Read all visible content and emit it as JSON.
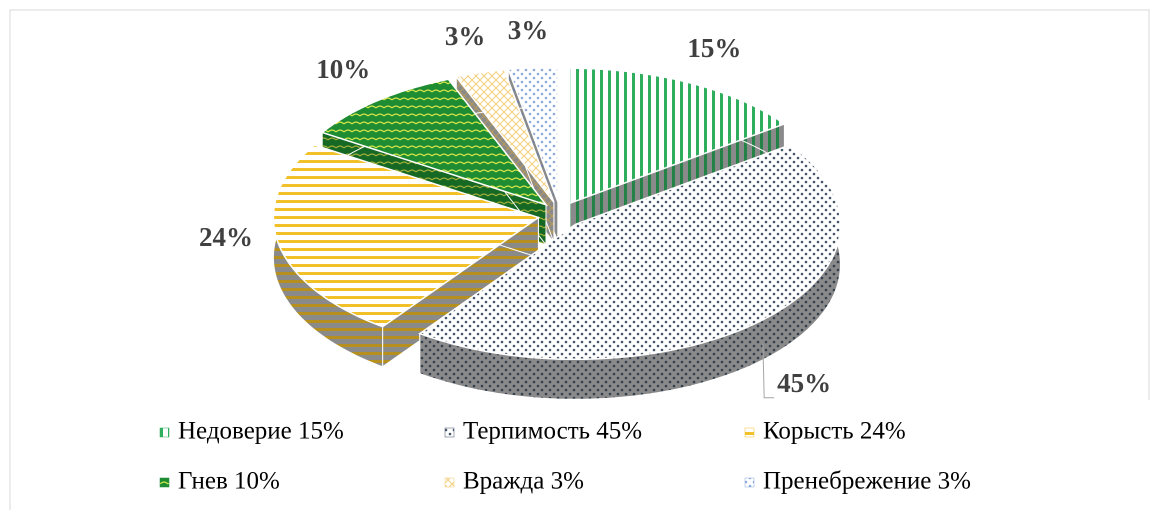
{
  "chart_data": {
    "type": "pie",
    "categories": [
      "Недоверие 15%",
      "Терпимость 45%",
      "Корысть 24%",
      "Гнев 10%",
      "Вражда 3%",
      "Пренебрежение 3%"
    ],
    "values": [
      15,
      45,
      24,
      10,
      3,
      3
    ],
    "value_labels": [
      "15%",
      "45%",
      "24%",
      "10%",
      "3%",
      "3%"
    ],
    "colors": [
      "#2fae5e",
      "#44546a",
      "#f2c029",
      "#1e8c32",
      "#f2cf7a",
      "#8eaadb"
    ],
    "legend": "bottom"
  }
}
